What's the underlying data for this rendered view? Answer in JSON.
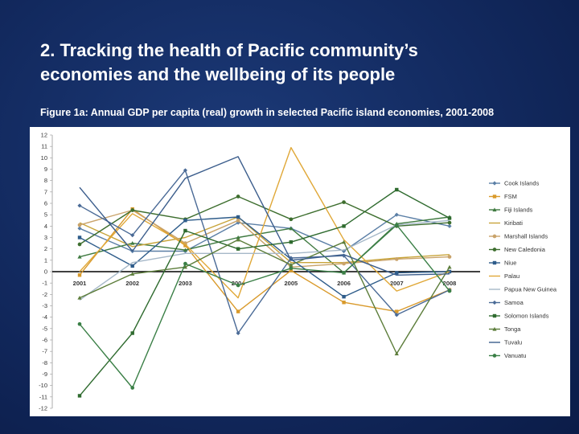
{
  "slide": {
    "title_line1": "2.  Tracking the health of Pacific community’s",
    "title_line2": "economies and the wellbeing of its people"
  },
  "figure": {
    "caption": "Figure 1a:  Annual GDP per capita (real) growth in selected Pacific island economies, 2001-2008"
  },
  "chart_data": {
    "type": "line",
    "categories": [
      "2001",
      "2002",
      "2003",
      "2004",
      "2005",
      "2006",
      "2007",
      "2008"
    ],
    "ylim": [
      -12,
      12
    ],
    "yticks": [
      12,
      11,
      10,
      9,
      8,
      7,
      6,
      5,
      4,
      3,
      2,
      1,
      0,
      -1,
      -2,
      -3,
      -4,
      -5,
      -6,
      -7,
      -8,
      -9,
      -10,
      -11,
      -12
    ],
    "grid": false,
    "legend_position": "right",
    "series": [
      {
        "name": "Cook Islands",
        "color": "#5b7fa6",
        "marker": "diamond",
        "values": [
          3.8,
          1.8,
          1.8,
          4.3,
          3.8,
          1.8,
          5.0,
          4.0
        ]
      },
      {
        "name": "FSM",
        "color": "#d99a2b",
        "marker": "square",
        "values": [
          -0.3,
          5.5,
          2.3,
          -3.5,
          0.1,
          -2.7,
          -3.5,
          -1.6
        ]
      },
      {
        "name": "Fiji Islands",
        "color": "#3f7a40",
        "marker": "triangle",
        "values": [
          1.3,
          2.5,
          1.9,
          3.0,
          3.8,
          -0.1,
          4.2,
          4.8
        ]
      },
      {
        "name": "Kiribati",
        "color": "#c8a43a",
        "marker": "none",
        "values": [
          4.3,
          2.2,
          3.0,
          4.8,
          0.8,
          0.8,
          1.2,
          1.5
        ]
      },
      {
        "name": "Marshall Islands",
        "color": "#c9a36a",
        "marker": "circle",
        "values": [
          4.1,
          5.4,
          2.5,
          4.5,
          0.4,
          0.7,
          1.1,
          1.3
        ]
      },
      {
        "name": "New Caledonia",
        "color": "#3d6e2e",
        "marker": "circle",
        "values": [
          2.4,
          5.4,
          4.6,
          6.6,
          4.6,
          6.1,
          4.0,
          4.3
        ]
      },
      {
        "name": "Niue",
        "color": "#2e5c8a",
        "marker": "square",
        "values": [
          3.0,
          0.5,
          4.5,
          4.8,
          1.1,
          -2.2,
          -0.1,
          0.0
        ]
      },
      {
        "name": "Palau",
        "color": "#e0a838",
        "marker": "none",
        "values": [
          0.0,
          5.1,
          2.4,
          -2.3,
          10.9,
          2.8,
          -1.7,
          0.0
        ]
      },
      {
        "name": "Papua New Guinea",
        "color": "#a6b8c8",
        "marker": "none",
        "values": [
          -2.5,
          0.8,
          1.6,
          1.6,
          1.6,
          1.9,
          4.1,
          4.5
        ]
      },
      {
        "name": "Samoa",
        "color": "#4a6a96",
        "marker": "diamond",
        "values": [
          5.8,
          3.2,
          8.9,
          -5.4,
          1.2,
          1.4,
          -3.8,
          -1.6
        ]
      },
      {
        "name": "Solomon Islands",
        "color": "#2f6b2f",
        "marker": "square",
        "values": [
          -10.9,
          -5.4,
          3.6,
          2.0,
          2.6,
          4.0,
          7.2,
          4.7
        ]
      },
      {
        "name": "Tonga",
        "color": "#5c7d3a",
        "marker": "triangle",
        "values": [
          -2.3,
          -0.2,
          0.4,
          2.8,
          0.6,
          2.6,
          -7.2,
          0.4
        ]
      },
      {
        "name": "Tuvalu",
        "color": "#3b5d8c",
        "marker": "none",
        "values": [
          7.4,
          1.8,
          8.2,
          10.1,
          1.0,
          1.5,
          -0.3,
          -0.2
        ]
      },
      {
        "name": "Vanuatu",
        "color": "#3a7f46",
        "marker": "circle",
        "values": [
          -4.6,
          -10.2,
          0.7,
          -1.2,
          0.3,
          -0.1,
          4.1,
          -1.7
        ]
      }
    ]
  }
}
